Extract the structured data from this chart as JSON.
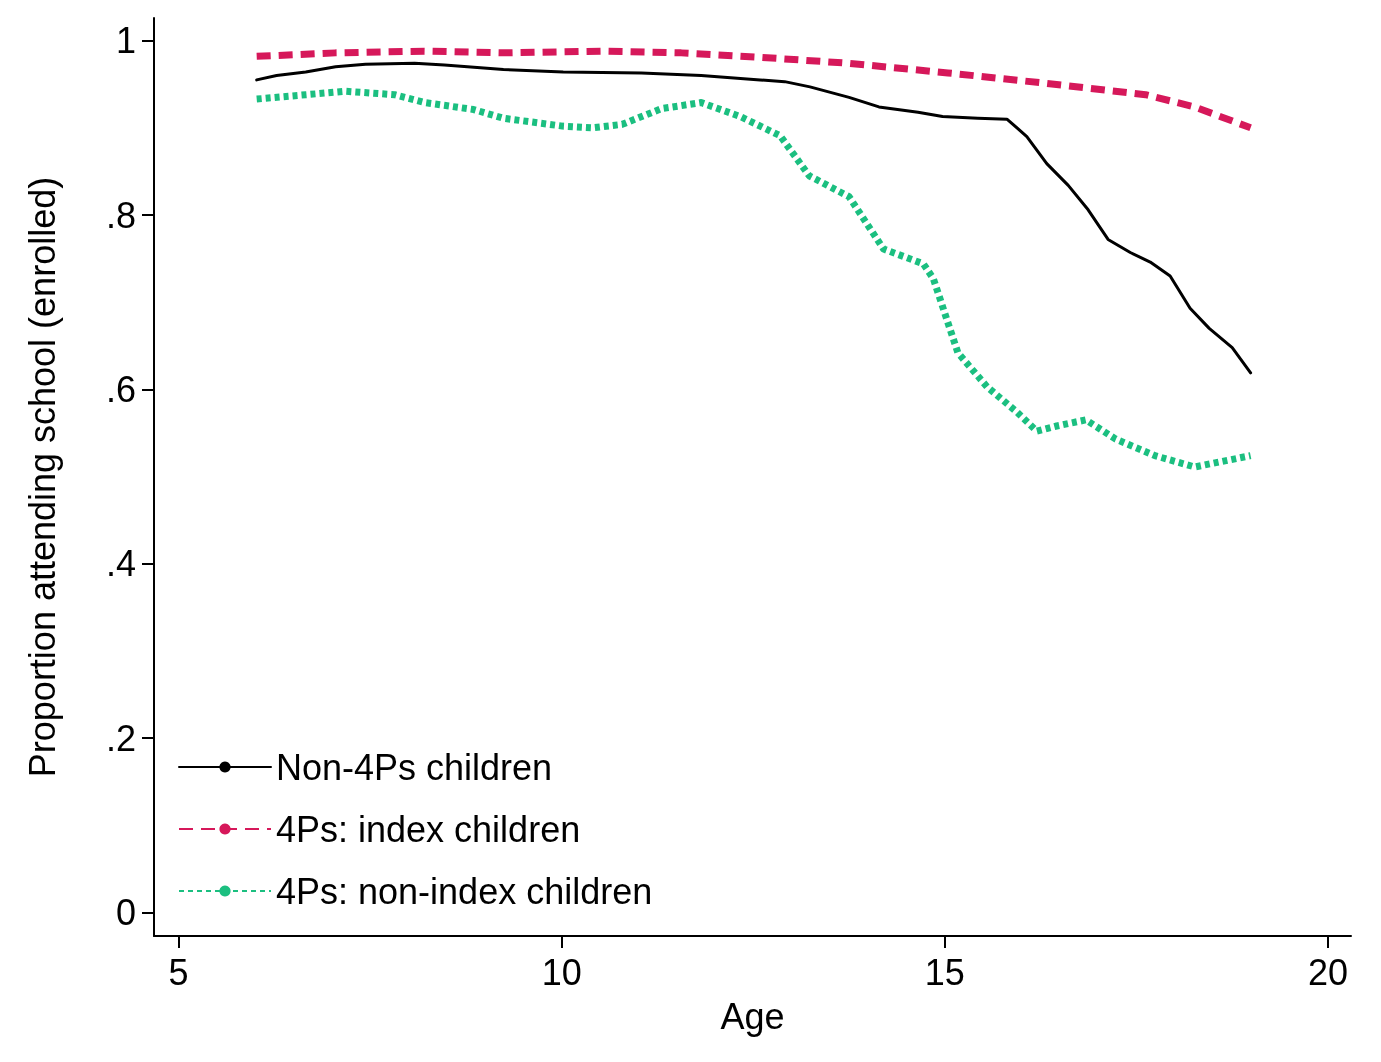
{
  "chart_data": {
    "type": "line",
    "xlabel": "Age",
    "ylabel": "Proportion attending school (enrolled)",
    "xlim": [
      4.68,
      20.3
    ],
    "ylim": [
      -0.027,
      1.026
    ],
    "xticks": [
      5,
      10,
      15,
      20
    ],
    "yticks": [
      {
        "value": 0,
        "label": "0"
      },
      {
        "value": 0.2,
        "label": ".2"
      },
      {
        "value": 0.4,
        "label": ".4"
      },
      {
        "value": 0.6,
        "label": ".6"
      },
      {
        "value": 0.8,
        "label": ".8"
      },
      {
        "value": 1,
        "label": "1"
      }
    ],
    "grid": false,
    "legend": "bottom left",
    "marker": "none",
    "series": [
      {
        "name": "Non-4Ps children",
        "color": "#000000",
        "line_style": "solid",
        "x": [
          6.02,
          6.28,
          6.66,
          7.05,
          7.44,
          8.08,
          8.47,
          9.24,
          10.02,
          11.04,
          11.82,
          12.59,
          12.91,
          13.24,
          13.75,
          14.14,
          14.65,
          14.97,
          15.43,
          15.81,
          16.07,
          16.33,
          16.61,
          16.87,
          17.13,
          17.42,
          17.68,
          17.94,
          18.2,
          18.45,
          18.75,
          18.99
        ],
        "values": [
          0.955,
          0.96,
          0.964,
          0.97,
          0.973,
          0.974,
          0.972,
          0.967,
          0.964,
          0.963,
          0.96,
          0.955,
          0.953,
          0.947,
          0.935,
          0.924,
          0.918,
          0.913,
          0.911,
          0.91,
          0.89,
          0.859,
          0.834,
          0.806,
          0.772,
          0.757,
          0.746,
          0.73,
          0.693,
          0.67,
          0.648,
          0.619
        ]
      },
      {
        "name": "4Ps: index children",
        "color": "#d6185a",
        "line_style": "dashed",
        "x": [
          6.02,
          7.05,
          8.21,
          9.24,
          10.53,
          11.56,
          12.59,
          13.75,
          15.04,
          16.33,
          17.62,
          18.26,
          18.99
        ],
        "values": [
          0.982,
          0.986,
          0.988,
          0.986,
          0.988,
          0.986,
          0.981,
          0.974,
          0.963,
          0.951,
          0.938,
          0.924,
          0.9
        ]
      },
      {
        "name": "4Ps: non-index children",
        "color": "#1bbf80",
        "line_style": "dotted",
        "x": [
          6.02,
          6.66,
          7.18,
          7.82,
          8.21,
          8.85,
          9.24,
          10.01,
          10.4,
          10.79,
          11.3,
          11.82,
          12.33,
          12.85,
          13.23,
          13.75,
          14.2,
          14.72,
          14.85,
          15.17,
          15.55,
          15.94,
          16.2,
          16.46,
          16.84,
          17.23,
          17.74,
          18.26,
          18.99
        ],
        "values": [
          0.933,
          0.938,
          0.942,
          0.938,
          0.929,
          0.921,
          0.911,
          0.902,
          0.9,
          0.904,
          0.922,
          0.929,
          0.913,
          0.891,
          0.845,
          0.821,
          0.761,
          0.744,
          0.727,
          0.642,
          0.603,
          0.574,
          0.552,
          0.558,
          0.565,
          0.543,
          0.524,
          0.511,
          0.524
        ]
      }
    ]
  }
}
